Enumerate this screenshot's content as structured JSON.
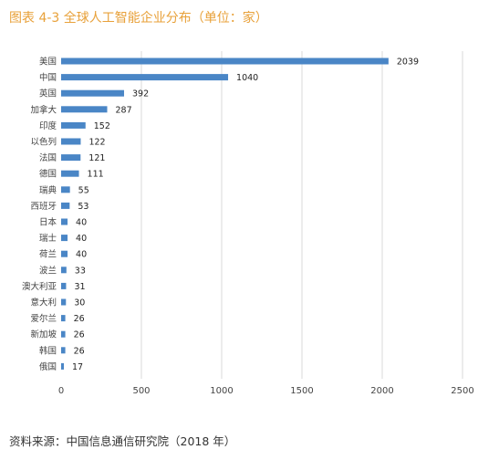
{
  "figure": {
    "title": "图表 4-3 全球人工智能企业分布（单位：家）",
    "source": "资料来源：中国信息通信研究院（2018 年）"
  },
  "colors": {
    "title": "#e8a13a",
    "bar": "#4a86c6",
    "grid": "#d9d9d9",
    "axis_text": "#444444"
  },
  "chart_data": {
    "type": "bar",
    "orientation": "horizontal",
    "title": "",
    "xlabel": "",
    "ylabel": "",
    "xlim": [
      0,
      2500
    ],
    "xticks": [
      0,
      500,
      1000,
      1500,
      2000,
      2500
    ],
    "grid": true,
    "legend": "none",
    "categories": [
      "美国",
      "中国",
      "英国",
      "加拿大",
      "印度",
      "以色列",
      "法国",
      "德国",
      "瑞典",
      "西班牙",
      "日本",
      "瑞士",
      "荷兰",
      "波兰",
      "澳大利亚",
      "意大利",
      "爱尔兰",
      "新加坡",
      "韩国",
      "俄国"
    ],
    "values": [
      2039,
      1040,
      392,
      287,
      152,
      122,
      121,
      111,
      55,
      53,
      40,
      40,
      40,
      33,
      31,
      30,
      26,
      26,
      26,
      17
    ]
  }
}
